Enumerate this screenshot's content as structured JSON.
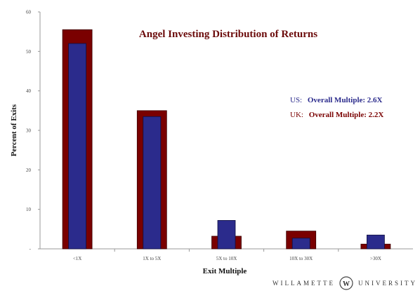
{
  "colors": {
    "uk": "#7a0000",
    "us": "#2b2b8c",
    "title": "#6b0b0b",
    "axis": "#999999"
  },
  "chart_data": {
    "type": "bar",
    "title": "Angel Investing Distribution of Returns",
    "xlabel": "Exit Multiple",
    "ylabel": "Percent of Exits",
    "ylim": [
      0,
      60
    ],
    "yticks": [
      "-",
      "10",
      "20",
      "30",
      "40",
      "50",
      "60"
    ],
    "categories": [
      "<1X",
      "1X to 5X",
      "5X to 10X",
      "10X to 30X",
      ">30X"
    ],
    "series": [
      {
        "key": "uk",
        "values": [
          55.5,
          35.0,
          3.2,
          4.5,
          1.2
        ]
      },
      {
        "key": "us",
        "values": [
          52.0,
          33.5,
          7.2,
          2.7,
          3.5
        ]
      }
    ],
    "legend_placement": "right",
    "grid": false
  },
  "annotations": {
    "us_prefix": "US:",
    "us_text": "Overall Multiple: 2.6X",
    "uk_prefix": "UK:",
    "uk_text": "Overall Multiple: 2.2X"
  },
  "footer": {
    "left": "WILLAMETTE",
    "logo_letter": "W",
    "right": "UNIVERSITY"
  }
}
